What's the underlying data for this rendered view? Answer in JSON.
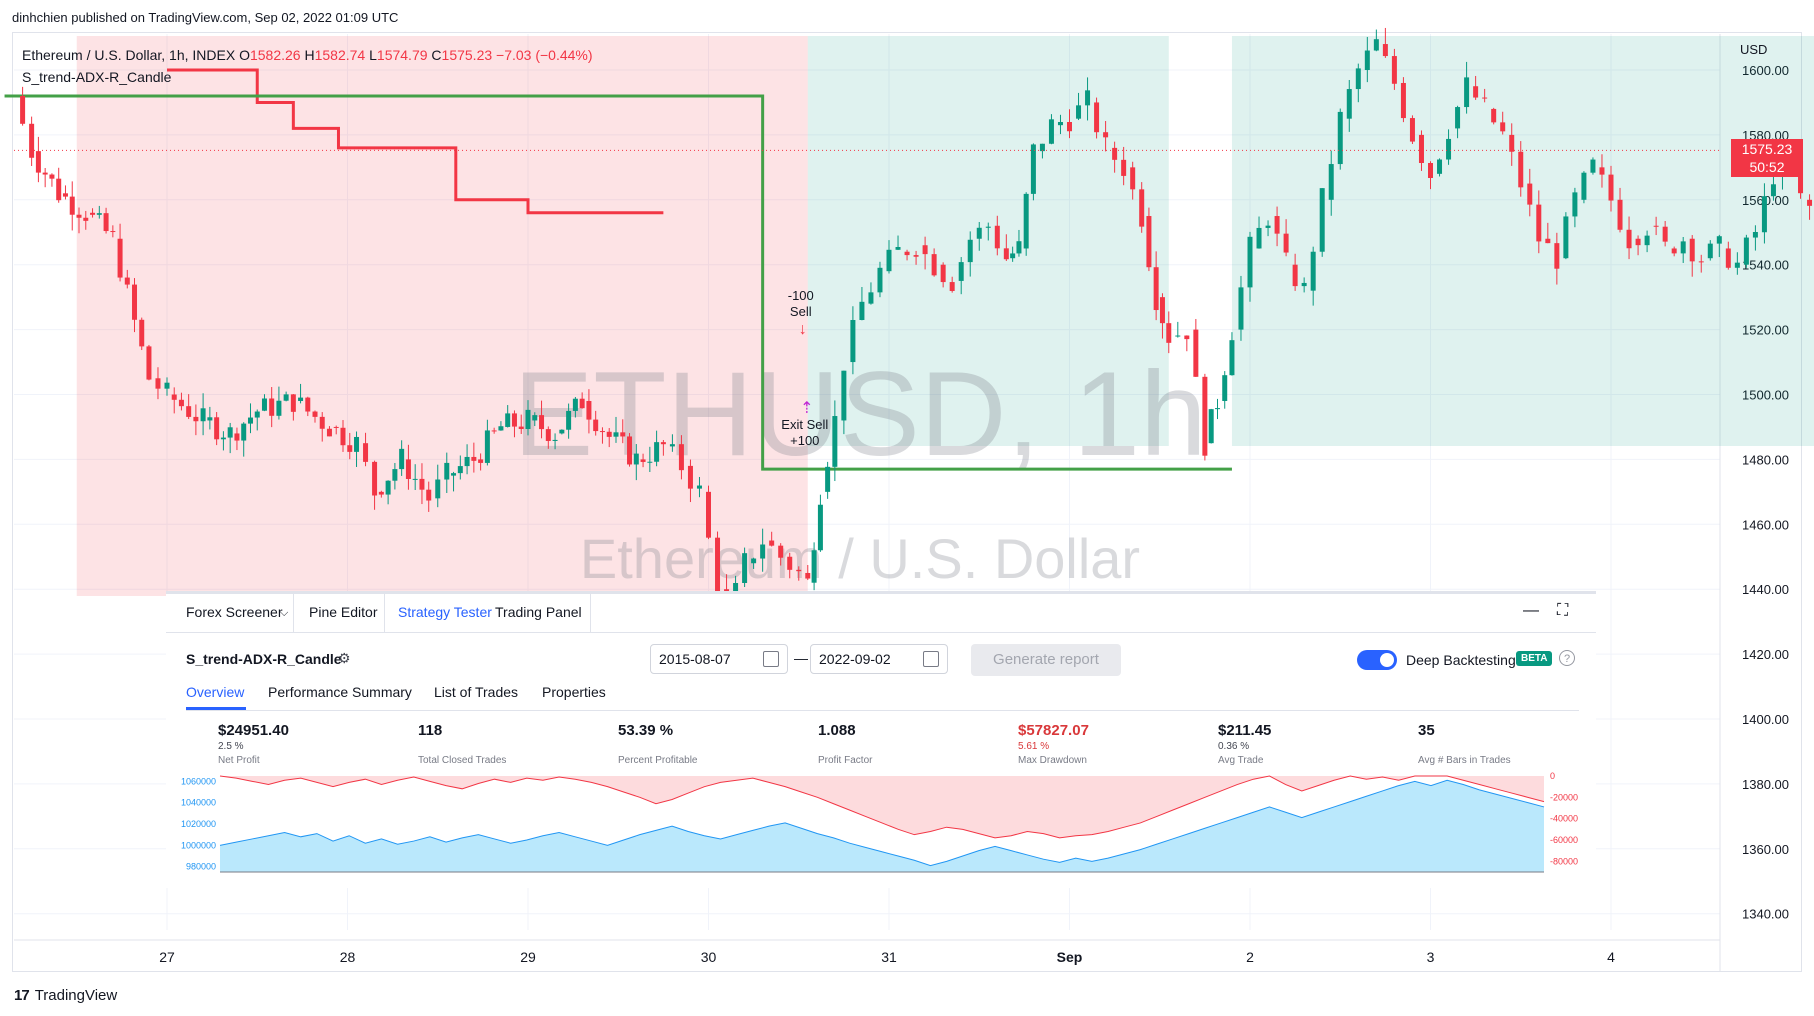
{
  "published": "dinhchien published on TradingView.com, Sep 02, 2022 01:09 UTC",
  "legend": {
    "symbol": "Ethereum / U.S. Dollar, 1h, INDEX",
    "o_label": "O",
    "o": "1582.26",
    "h_label": "H",
    "h": "1582.74",
    "l_label": "L",
    "l": "1574.79",
    "c_label": "C",
    "c": "1575.23",
    "change": "−7.03 (−0.44%)",
    "indicator": "S_trend-ADX-R_Candle"
  },
  "watermark": {
    "line1": "ETHUSD, 1h",
    "line2": "Ethereum / U.S. Dollar"
  },
  "price_axis": {
    "currency": "USD",
    "last_price": "1575.23",
    "countdown": "50:52"
  },
  "footer": {
    "brand": "TradingView"
  },
  "colors": {
    "up": "#089981",
    "down": "#f23645",
    "accent": "#2962ff"
  },
  "chart_data": {
    "type": "candlestick",
    "title": "Ethereum / U.S. Dollar, 1h, INDEX",
    "y_ticks": [
      "1600.00",
      "1580.00",
      "1560.00",
      "1540.00",
      "1520.00",
      "1500.00",
      "1480.00",
      "1460.00",
      "1440.00",
      "1420.00",
      "1400.00",
      "1380.00",
      "1360.00",
      "1340.00"
    ],
    "x_ticks": [
      "27",
      "28",
      "29",
      "30",
      "31",
      "Sep",
      "2",
      "3",
      "4"
    ],
    "ylim": [
      1334,
      1610
    ],
    "trades": [
      {
        "label_top": "-100",
        "label_bottom": "Sell",
        "price": 1526
      },
      {
        "label_top": "Exit Sell",
        "label_bottom": "+100",
        "price": 1490
      }
    ],
    "supertrend_red": [
      [
        0,
        1600
      ],
      [
        0.5,
        1590
      ],
      [
        0.7,
        1582
      ],
      [
        0.95,
        1576
      ],
      [
        1.4,
        1576
      ],
      [
        1.6,
        1560
      ],
      [
        2.0,
        1556
      ],
      [
        2.75,
        1556
      ]
    ],
    "supertrend_green": [
      [
        -0.9,
        1592
      ],
      [
        -0.5,
        1592
      ],
      [
        3.3,
        1477
      ],
      [
        3.45,
        1477
      ],
      [
        5.9,
        1477
      ]
    ],
    "series_candles_note": "Approximate hourly OHLC path for ETHUSD Aug 26 - Sep 2, 2022",
    "path": [
      [
        -0.85,
        1592
      ],
      [
        -0.75,
        1575
      ],
      [
        -0.6,
        1562
      ],
      [
        -0.45,
        1556
      ],
      [
        -0.3,
        1548
      ],
      [
        -0.1,
        1505
      ],
      [
        0.0,
        1500
      ],
      [
        0.2,
        1492
      ],
      [
        0.35,
        1488
      ],
      [
        0.5,
        1495
      ],
      [
        0.7,
        1498
      ],
      [
        0.9,
        1490
      ],
      [
        1.05,
        1485
      ],
      [
        1.15,
        1470
      ],
      [
        1.3,
        1480
      ],
      [
        1.45,
        1468
      ],
      [
        1.55,
        1475
      ],
      [
        1.7,
        1480
      ],
      [
        1.85,
        1490
      ],
      [
        2.0,
        1492
      ],
      [
        2.15,
        1488
      ],
      [
        2.3,
        1498
      ],
      [
        2.45,
        1487
      ],
      [
        2.6,
        1480
      ],
      [
        2.75,
        1484
      ],
      [
        2.85,
        1478
      ],
      [
        2.95,
        1470
      ],
      [
        3.05,
        1440
      ],
      [
        3.1,
        1430
      ],
      [
        3.2,
        1448
      ],
      [
        3.3,
        1455
      ],
      [
        3.4,
        1450
      ],
      [
        3.5,
        1445
      ],
      [
        3.55,
        1442
      ],
      [
        3.62,
        1470
      ],
      [
        3.7,
        1492
      ],
      [
        3.75,
        1510
      ],
      [
        3.85,
        1528
      ],
      [
        3.95,
        1538
      ],
      [
        4.05,
        1544
      ],
      [
        4.15,
        1546
      ],
      [
        4.25,
        1540
      ],
      [
        4.35,
        1535
      ],
      [
        4.45,
        1548
      ],
      [
        4.55,
        1552
      ],
      [
        4.65,
        1542
      ],
      [
        4.72,
        1545
      ],
      [
        4.8,
        1575
      ],
      [
        4.9,
        1583
      ],
      [
        5.0,
        1585
      ],
      [
        5.1,
        1590
      ],
      [
        5.2,
        1576
      ],
      [
        5.3,
        1570
      ],
      [
        5.4,
        1555
      ],
      [
        5.48,
        1530
      ],
      [
        5.55,
        1518
      ],
      [
        5.65,
        1520
      ],
      [
        5.75,
        1485
      ],
      [
        5.82,
        1498
      ],
      [
        5.9,
        1520
      ],
      [
        6.0,
        1545
      ],
      [
        6.1,
        1555
      ],
      [
        6.2,
        1540
      ],
      [
        6.3,
        1532
      ],
      [
        6.4,
        1560
      ],
      [
        6.5,
        1585
      ],
      [
        6.6,
        1600
      ],
      [
        6.7,
        1608
      ],
      [
        6.8,
        1596
      ],
      [
        6.9,
        1580
      ],
      [
        7.0,
        1568
      ],
      [
        7.1,
        1582
      ],
      [
        7.2,
        1595
      ],
      [
        7.3,
        1588
      ],
      [
        7.4,
        1580
      ],
      [
        7.5,
        1565
      ],
      [
        7.6,
        1548
      ],
      [
        7.7,
        1542
      ],
      [
        7.8,
        1560
      ],
      [
        7.9,
        1570
      ],
      [
        8.0,
        1560
      ],
      [
        8.1,
        1548
      ],
      [
        8.2,
        1552
      ],
      [
        8.3,
        1545
      ],
      [
        8.4,
        1548
      ],
      [
        8.5,
        1542
      ],
      [
        8.6,
        1545
      ],
      [
        8.7,
        1540
      ],
      [
        8.8,
        1550
      ],
      [
        8.9,
        1568
      ],
      [
        9.0,
        1572
      ],
      [
        9.05,
        1560
      ],
      [
        9.15,
        1555
      ],
      [
        9.2,
        1522
      ],
      [
        9.3,
        1530
      ],
      [
        9.4,
        1540
      ],
      [
        9.5,
        1552
      ],
      [
        9.6,
        1562
      ],
      [
        9.7,
        1574
      ],
      [
        9.8,
        1582
      ],
      [
        9.9,
        1588
      ],
      [
        10.0,
        1584
      ],
      [
        10.1,
        1578
      ],
      [
        10.15,
        1575
      ]
    ],
    "bands": [
      {
        "kind": "down",
        "from": -0.5,
        "to": 3.55
      },
      {
        "kind": "up",
        "from": 3.55,
        "to": 5.55
      },
      {
        "kind": "up",
        "from": 5.9,
        "to": 9.15
      },
      {
        "kind": "down",
        "from": 9.15,
        "to": 9.65
      }
    ]
  },
  "tester": {
    "tabs": [
      "Forex Screener",
      "Pine Editor",
      "Strategy Tester",
      "Trading Panel"
    ],
    "active_tab": "Strategy Tester",
    "strategy_name": "S_trend-ADX-R_Candle",
    "date_from": "2015-08-07",
    "date_dash": "—",
    "date_to": "2022-09-02",
    "generate_report": "Generate report",
    "deep_backtesting": "Deep Backtesting",
    "beta": "BETA",
    "help": "?",
    "subtabs": [
      "Overview",
      "Performance Summary",
      "List of Trades",
      "Properties"
    ],
    "metrics": [
      {
        "value": "$24951.40",
        "pct": "2.5 %",
        "label": "Net Profit",
        "neg": false
      },
      {
        "value": "118",
        "pct": "",
        "label": "Total Closed Trades",
        "neg": false
      },
      {
        "value": "53.39 %",
        "pct": "",
        "label": "Percent Profitable",
        "neg": false
      },
      {
        "value": "1.088",
        "pct": "",
        "label": "Profit Factor",
        "neg": false
      },
      {
        "value": "$57827.07",
        "pct": "5.61 %",
        "label": "Max Drawdown",
        "neg": true
      },
      {
        "value": "$211.45",
        "pct": "0.36 %",
        "label": "Avg Trade",
        "neg": false
      },
      {
        "value": "35",
        "pct": "",
        "label": "Avg # Bars in Trades",
        "neg": false
      }
    ],
    "equity_chart": {
      "left_ticks": [
        "1060000",
        "1040000",
        "1020000",
        "1000000",
        "980000"
      ],
      "right_ticks": [
        "0",
        "-20000",
        "-40000",
        "-60000",
        "-80000"
      ],
      "equity": [
        1000000,
        1003000,
        1006000,
        1009000,
        1012000,
        1008000,
        1011000,
        1004000,
        1009000,
        1002000,
        1006000,
        1001000,
        1004000,
        1008000,
        1003000,
        1007000,
        1010000,
        1006000,
        1002000,
        1005000,
        1009000,
        1012000,
        1008000,
        1004000,
        1000000,
        1005000,
        1010000,
        1014000,
        1018000,
        1013000,
        1009000,
        1006000,
        1010000,
        1014000,
        1018000,
        1021000,
        1016000,
        1011000,
        1007000,
        1002000,
        998000,
        994000,
        990000,
        986000,
        981000,
        985000,
        990000,
        995000,
        999000,
        995000,
        991000,
        987000,
        984000,
        988000,
        985000,
        988000,
        992000,
        996000,
        1001000,
        1006000,
        1011000,
        1016000,
        1021000,
        1026000,
        1031000,
        1036000,
        1031000,
        1026000,
        1031000,
        1036000,
        1041000,
        1046000,
        1051000,
        1056000,
        1060000,
        1056000,
        1061000,
        1057000,
        1052000,
        1048000,
        1044000,
        1040000,
        1036000
      ],
      "drawdown": [
        0,
        -2000,
        -5000,
        -8000,
        -4000,
        -2000,
        -6000,
        -10000,
        -6000,
        -3000,
        -8000,
        -4000,
        -1000,
        -5000,
        -9000,
        -12000,
        -7000,
        -3000,
        -6000,
        -2000,
        -4000,
        -1000,
        -3000,
        -6000,
        -10000,
        -15000,
        -20000,
        -26000,
        -22000,
        -16000,
        -10000,
        -6000,
        -4000,
        -2000,
        -6000,
        -10000,
        -15000,
        -20000,
        -26000,
        -32000,
        -38000,
        -44000,
        -50000,
        -55000,
        -52000,
        -48000,
        -50000,
        -54000,
        -58000,
        -56000,
        -52000,
        -54000,
        -58000,
        -56000,
        -55000,
        -52000,
        -48000,
        -44000,
        -38000,
        -32000,
        -26000,
        -20000,
        -14000,
        -8000,
        -3000,
        0,
        -8000,
        -14000,
        -9000,
        -4000,
        0,
        -3000,
        -1000,
        -4000,
        0,
        0,
        0,
        -4000,
        -8000,
        -12000,
        -16000,
        -20000,
        -24000
      ]
    }
  }
}
